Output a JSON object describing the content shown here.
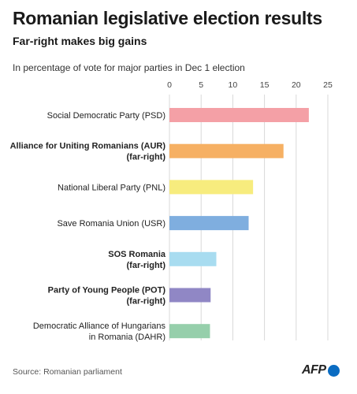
{
  "header": {
    "title": "Romanian legislative election results",
    "subtitle": "Far-right makes big gains",
    "description": "In percentage of vote for major parties in Dec 1 election"
  },
  "footer": {
    "source": "Source: Romanian parliament",
    "logo_text": "AFP"
  },
  "chart_data": {
    "type": "bar",
    "orientation": "horizontal",
    "title": "Romanian legislative election results",
    "subtitle": "Far-right makes big gains",
    "xlim": [
      0,
      25
    ],
    "ticks": [
      0,
      5,
      10,
      15,
      20,
      25
    ],
    "tick_labels": [
      "0",
      "5",
      "10",
      "15",
      "20",
      "25"
    ],
    "axis_position": "top",
    "grid": true,
    "legend": "none",
    "categories": [
      {
        "lines": [
          "Social Democratic Party (PSD)"
        ],
        "bold": false
      },
      {
        "lines": [
          "Alliance for Uniting Romanians (AUR)",
          "(far-right)"
        ],
        "bold": true
      },
      {
        "lines": [
          "National Liberal Party (PNL)"
        ],
        "bold": false
      },
      {
        "lines": [
          "Save Romania Union (USR)"
        ],
        "bold": false
      },
      {
        "lines": [
          "SOS Romania",
          "(far-right)"
        ],
        "bold": true
      },
      {
        "lines": [
          "Party of Young People (POT)",
          "(far-right)"
        ],
        "bold": true
      },
      {
        "lines": [
          "Democratic Alliance of Hungarians",
          "in Romania (DAHR)"
        ],
        "bold": false
      }
    ],
    "values": [
      22.0,
      18.0,
      13.2,
      12.5,
      7.4,
      6.5,
      6.4
    ],
    "colors": [
      "#f4a0a6",
      "#f6b063",
      "#f7ec7e",
      "#7faedf",
      "#a8dcf0",
      "#9087c5",
      "#96cfab"
    ]
  }
}
